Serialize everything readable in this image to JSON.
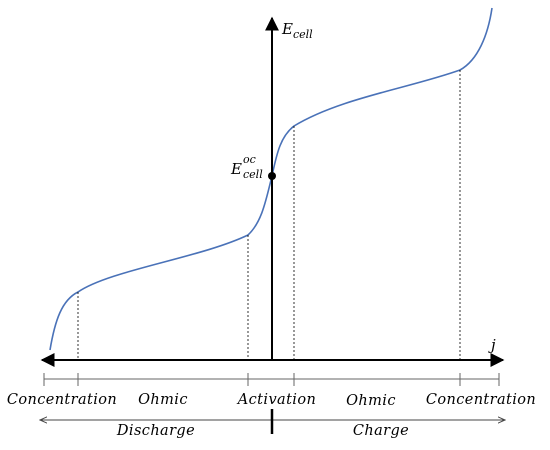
{
  "diagram": {
    "y_axis": {
      "symbol": "E",
      "subscript": "cell"
    },
    "x_axis": {
      "symbol": "j"
    },
    "ocv_point": {
      "symbol": "E",
      "superscript": "oc",
      "subscript": "cell"
    },
    "regions": [
      "Concentration",
      "Ohmic",
      "Activation",
      "Ohmic",
      "Concentration"
    ],
    "modes": {
      "left": "Discharge",
      "right": "Charge"
    },
    "colors": {
      "curve": "#4a72b8",
      "axes": "#000000"
    }
  }
}
